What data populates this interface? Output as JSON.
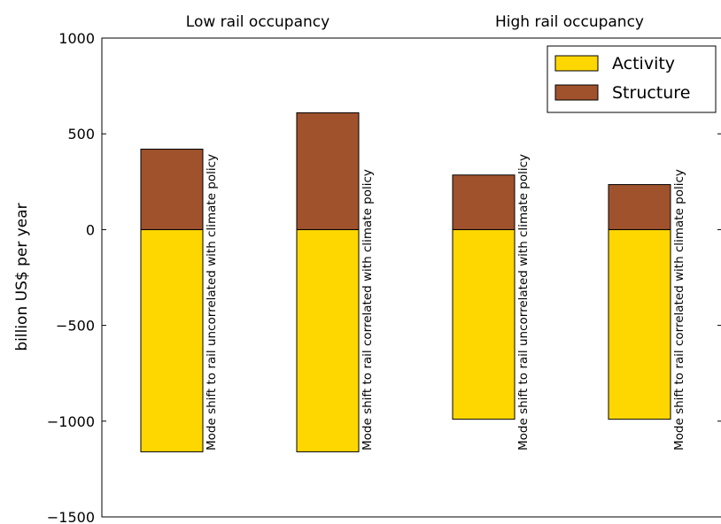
{
  "chart_data": {
    "type": "bar",
    "stacked": true,
    "panel_titles": [
      "Low rail occupancy",
      "High rail occupancy"
    ],
    "categories": [
      "Mode shift to rail uncorrelated with climate policy",
      "Mode shift to rail correlated with climate policy",
      "Mode shift to rail uncorrelated with climate policy",
      "Mode shift to rail correlated with climate policy"
    ],
    "series": [
      {
        "name": "Activity",
        "color": "#ffd700",
        "values": [
          -1160,
          -1160,
          -990,
          -990
        ]
      },
      {
        "name": "Structure",
        "color": "#a0522d",
        "values": [
          420,
          610,
          285,
          235
        ]
      }
    ],
    "xlabel": "",
    "ylabel": "billion US$ per year",
    "ylim": [
      -1500,
      1000
    ],
    "yticks": [
      -1500,
      -1000,
      -500,
      0,
      500,
      1000
    ],
    "ytick_labels": [
      "−1500",
      "−1000",
      "−500",
      "0",
      "500",
      "1000"
    ],
    "grid": false,
    "legend_position": "top-right"
  }
}
